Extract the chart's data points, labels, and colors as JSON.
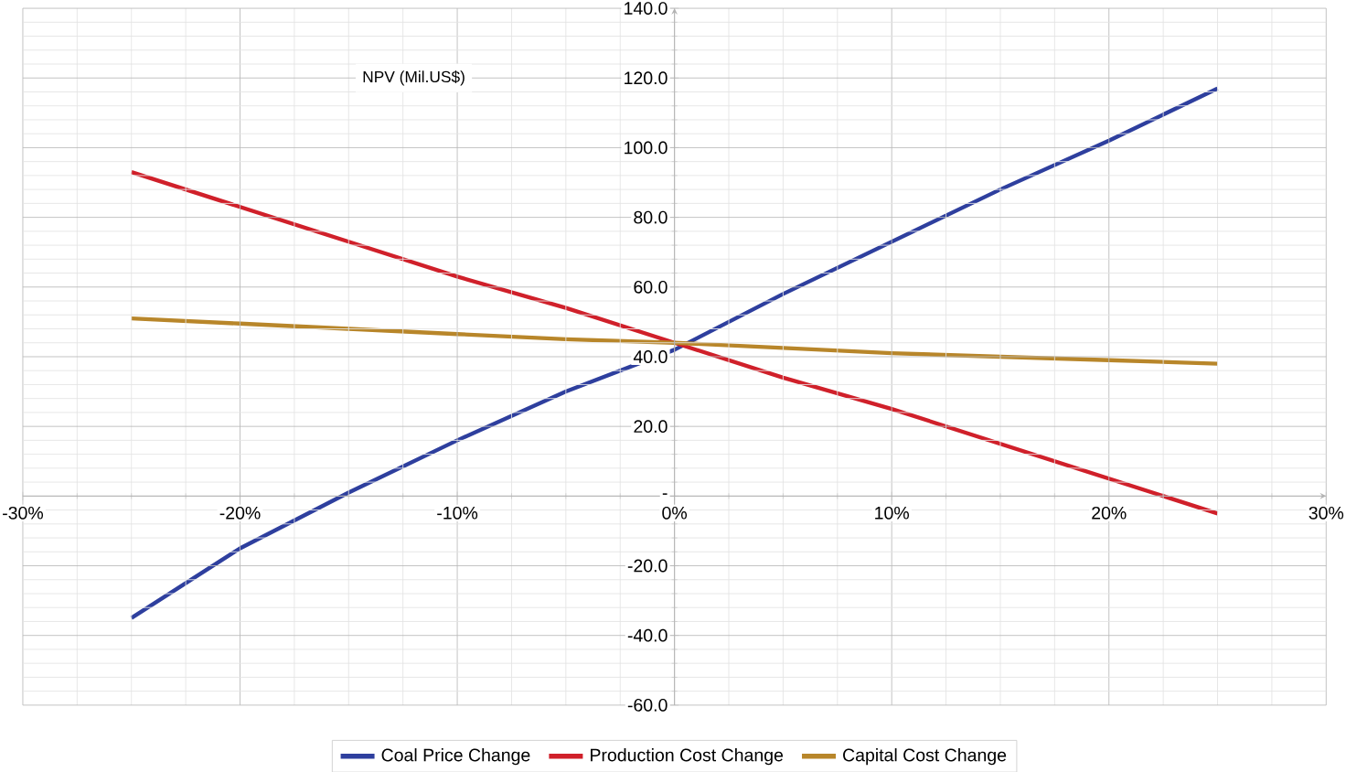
{
  "chart_data": {
    "type": "line",
    "ylabel": "NPV (Mil.US$)",
    "x": [
      -25,
      -20,
      -15,
      -10,
      -5,
      0,
      5,
      10,
      15,
      20,
      25
    ],
    "series": [
      {
        "name": "Coal Price Change",
        "color": "#2e3f9e",
        "values": [
          -35,
          -15,
          1,
          16,
          30,
          42,
          58,
          73,
          88,
          102,
          117
        ]
      },
      {
        "name": "Production Cost Change",
        "color": "#d0202a",
        "values": [
          93,
          83,
          73,
          63,
          54,
          44,
          34,
          25,
          15,
          5,
          -5
        ]
      },
      {
        "name": "Capital Cost Change",
        "color": "#b8862a",
        "values": [
          51,
          49.5,
          48,
          46.5,
          45,
          44,
          42.5,
          41,
          40,
          39,
          38
        ]
      }
    ],
    "xlim": [
      -30,
      30
    ],
    "ylim": [
      -60,
      140
    ],
    "xticks": [
      {
        "value": -30,
        "label": "-30%"
      },
      {
        "value": -20,
        "label": "-20%"
      },
      {
        "value": -10,
        "label": "-10%"
      },
      {
        "value": 0,
        "label": "0%"
      },
      {
        "value": 10,
        "label": "10%"
      },
      {
        "value": 20,
        "label": "20%"
      },
      {
        "value": 30,
        "label": "30%"
      }
    ],
    "yticks": [
      {
        "value": -60,
        "label": "-60.0"
      },
      {
        "value": -40,
        "label": "-40.0"
      },
      {
        "value": -20,
        "label": "-20.0"
      },
      {
        "value": 0,
        "label": "-"
      },
      {
        "value": 20,
        "label": "20.0"
      },
      {
        "value": 40,
        "label": "40.0"
      },
      {
        "value": 60,
        "label": "60.0"
      },
      {
        "value": 80,
        "label": "80.0"
      },
      {
        "value": 100,
        "label": "100.0"
      },
      {
        "value": 120,
        "label": "120.0"
      },
      {
        "value": 140,
        "label": "140.0"
      }
    ],
    "grid": true,
    "legend": "bottom",
    "marker": "none",
    "line_style": "solid"
  }
}
